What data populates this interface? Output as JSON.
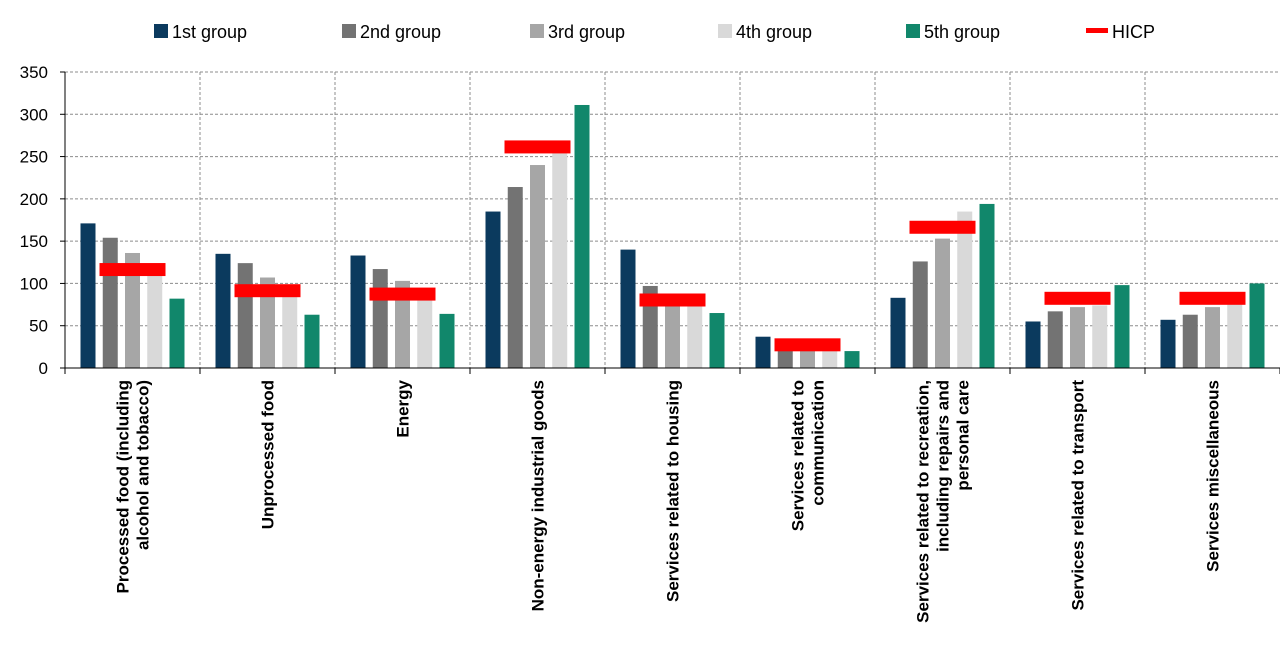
{
  "chart_data": {
    "type": "bar",
    "title": "",
    "xlabel": "",
    "ylabel": "",
    "ylim": [
      0,
      350
    ],
    "yticks": [
      0,
      50,
      100,
      150,
      200,
      250,
      300,
      350
    ],
    "grid": true,
    "legend_position": "top",
    "categories": [
      [
        "Processed food (including",
        "alcohol and tobacco)"
      ],
      [
        "Unprocessed food"
      ],
      [
        "Energy"
      ],
      [
        "Non-energy industrial goods"
      ],
      [
        "Services related to housing"
      ],
      [
        "Services related to",
        "communication"
      ],
      [
        "Services related to recreation,",
        "including repairs and",
        "personal care"
      ],
      [
        "Services related to transport"
      ],
      [
        "Services miscellaneous"
      ]
    ],
    "series": [
      {
        "name": "1st group",
        "color": "#0b3a5e",
        "values": [
          171,
          135,
          133,
          185,
          140,
          37,
          83,
          55,
          57
        ]
      },
      {
        "name": "2nd group",
        "color": "#737373",
        "values": [
          154,
          124,
          117,
          214,
          97,
          27,
          126,
          67,
          63
        ]
      },
      {
        "name": "3rd group",
        "color": "#a6a6a6",
        "values": [
          136,
          107,
          103,
          240,
          76,
          23,
          153,
          72,
          72
        ]
      },
      {
        "name": "4th group",
        "color": "#d9d9d9",
        "values": [
          111,
          88,
          85,
          260,
          74,
          21,
          185,
          74,
          76
        ]
      },
      {
        "name": "5th group",
        "color": "#11876b",
        "values": [
          82,
          63,
          64,
          311,
          65,
          20,
          194,
          98,
          100
        ]
      }
    ],
    "hicp": {
      "name": "HICP",
      "color": "#ff0000",
      "values": [
        117,
        92,
        88,
        262,
        81,
        28,
        167,
        83,
        83
      ]
    }
  }
}
